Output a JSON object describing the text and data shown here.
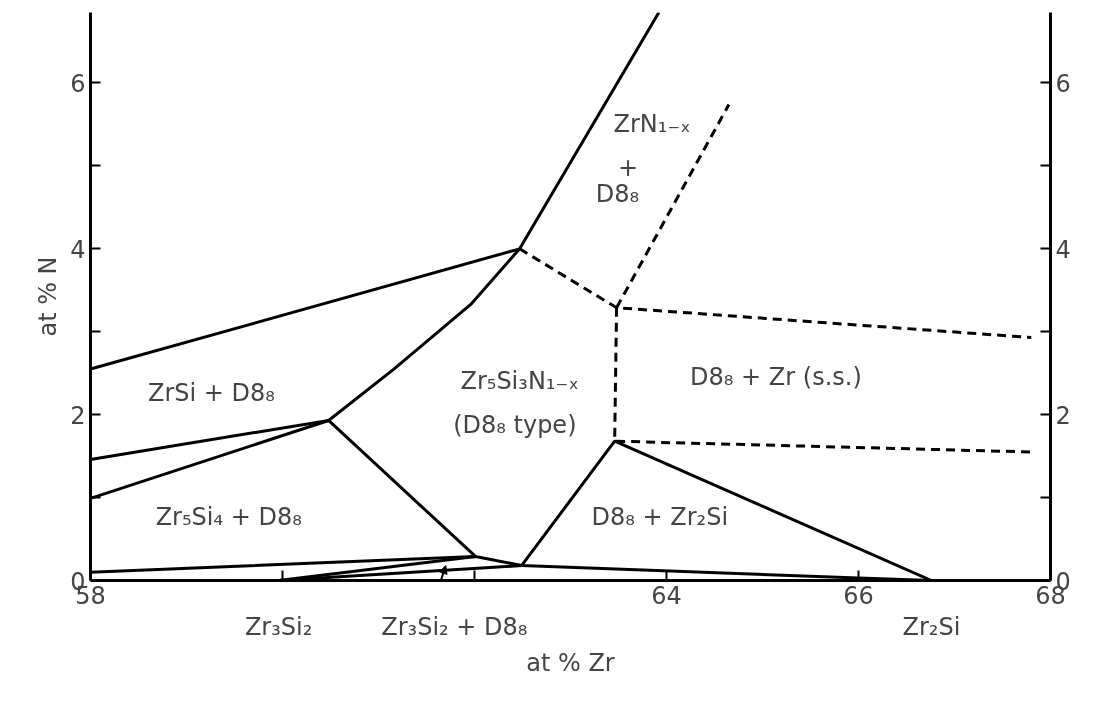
{
  "chart_data": {
    "type": "line",
    "xlabel": "at % Zr",
    "ylabel": "at % N",
    "xlim": [
      58,
      68
    ],
    "ylim": [
      0,
      6.85
    ],
    "y2lim": [
      0,
      6.85
    ],
    "xticks": [
      58,
      {
        "value": 60,
        "label": null
      },
      {
        "value": 62,
        "label": null
      },
      64,
      66,
      68
    ],
    "yticks": [
      0,
      {
        "value": 1,
        "label": null
      },
      2,
      {
        "value": 3,
        "label": null
      },
      4,
      {
        "value": 5,
        "label": null
      },
      6
    ],
    "y2ticks": [
      0,
      {
        "value": 1,
        "label": null
      },
      2,
      {
        "value": 3,
        "label": null
      },
      4,
      {
        "value": 5,
        "label": null
      },
      6
    ],
    "grid": false,
    "marker": "none",
    "series": [
      {
        "color": "#000000",
        "line_style": "solid",
        "x": [
          58,
          62.47
        ],
        "values": [
          2.55,
          4.0
        ]
      },
      {
        "color": "#000000",
        "line_style": "solid",
        "x": [
          58,
          60.48,
          61.16,
          61.97,
          62.47,
          63.92
        ],
        "values": [
          0.99,
          1.93,
          2.55,
          3.34,
          4.0,
          6.85
        ]
      },
      {
        "color": "#000000",
        "line_style": "solid",
        "x": [
          58,
          60.48,
          62.01
        ],
        "values": [
          1.46,
          1.93,
          0.29
        ]
      },
      {
        "color": "#000000",
        "line_style": "solid",
        "x": [
          58,
          62.01,
          62.49,
          66.0,
          66.76
        ],
        "values": [
          0.1,
          0.29,
          0.18,
          0.03,
          0
        ]
      },
      {
        "color": "#000000",
        "line_style": "solid",
        "x": [
          59.96,
          62.01
        ],
        "values": [
          0,
          0.29
        ]
      },
      {
        "color": "#000000",
        "line_style": "solid",
        "x": [
          59.96,
          62.49
        ],
        "values": [
          0,
          0.18
        ]
      },
      {
        "color": "#000000",
        "line_style": "solid",
        "x": [
          62.49,
          63.46,
          66.76
        ],
        "values": [
          0.18,
          1.68,
          0
        ]
      },
      {
        "color": "#000000",
        "line_style": "dashed",
        "x": [
          62.47,
          63.48,
          67.8
        ],
        "values": [
          4.0,
          3.29,
          2.93
        ]
      },
      {
        "color": "#000000",
        "line_style": "dashed",
        "x": [
          63.48,
          64.65
        ],
        "values": [
          3.29,
          5.74
        ]
      },
      {
        "color": "#000000",
        "line_style": "dashed",
        "x": [
          63.48,
          63.46,
          67.8
        ],
        "values": [
          3.29,
          1.68,
          1.55
        ]
      }
    ],
    "annotations": [
      "ZrSi + D8₈",
      "Zr₅Si₄ + D8₈",
      "Zr₅Si₃N₁₋ₓ",
      "(D8₈ type)",
      "ZrN₁₋ₓ",
      "+",
      "D8₈",
      "D8₈ + Zr (s.s.)",
      "D8₈ + Zr₂Si",
      {
        "text": "Zr₃Si₂",
        "x": 59.96,
        "y": 0
      },
      "Zr₃Si₂ + D8₈",
      {
        "text": "Zr₂Si",
        "x": 66.76,
        "y": 0
      }
    ]
  }
}
